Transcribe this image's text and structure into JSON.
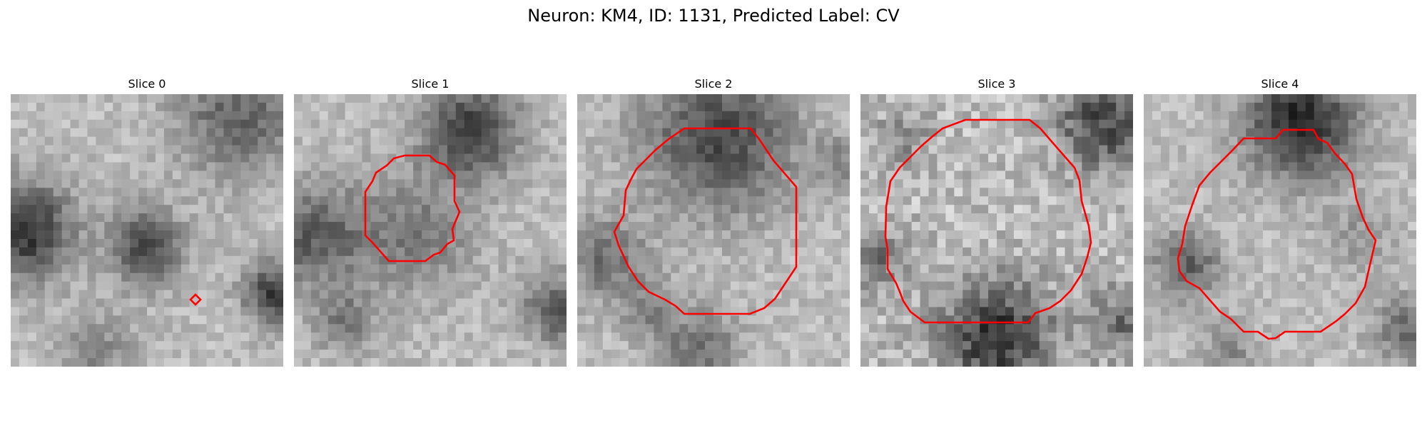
{
  "figure": {
    "title": "Neuron: KM4, ID: 1131, Predicted Label: CV"
  },
  "contour_color": "#ff0000",
  "image_colormap": "gray",
  "slices": [
    {
      "title": "Slice 0"
    },
    {
      "title": "Slice 1"
    },
    {
      "title": "Slice 2"
    },
    {
      "title": "Slice 3"
    },
    {
      "title": "Slice 4"
    }
  ]
}
